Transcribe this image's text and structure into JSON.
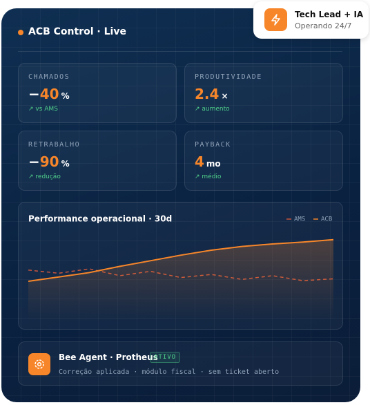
{
  "header": {
    "title": "ACB Control · Live"
  },
  "badge": {
    "title": "Tech Lead + IA",
    "subtitle": "Operando 24/7"
  },
  "stats": [
    {
      "label": "CHAMADOS",
      "sign": "−",
      "value": "40",
      "unit": "%",
      "note": "↗ vs AMS"
    },
    {
      "label": "PRODUTIVIDADE",
      "sign": "",
      "value": "2.4",
      "unit": "×",
      "note": "↗ aumento"
    },
    {
      "label": "RETRABALHO",
      "sign": "−",
      "value": "90",
      "unit": "%",
      "note": "↗ redução"
    },
    {
      "label": "PAYBACK",
      "sign": "",
      "value": "4",
      "unit": "mo",
      "note": "↗ médio"
    }
  ],
  "chart_data": {
    "type": "line",
    "title": "Performance operacional · 30d",
    "ylim": [
      0,
      100
    ],
    "series": [
      {
        "name": "AMS",
        "color": "#c8553d",
        "dashed": true,
        "values": [
          38,
          33,
          40,
          29,
          36,
          26,
          31,
          23,
          29,
          21,
          24
        ]
      },
      {
        "name": "ACB",
        "color": "#f7862a",
        "dashed": false,
        "area": true,
        "values": [
          20,
          27,
          34,
          44,
          53,
          62,
          70,
          76,
          80,
          83,
          87
        ]
      }
    ]
  },
  "agent": {
    "title": "Bee Agent · Protheus",
    "status": "ATIVO",
    "detail": "Correção aplicada · módulo fiscal · sem ticket aberto"
  }
}
